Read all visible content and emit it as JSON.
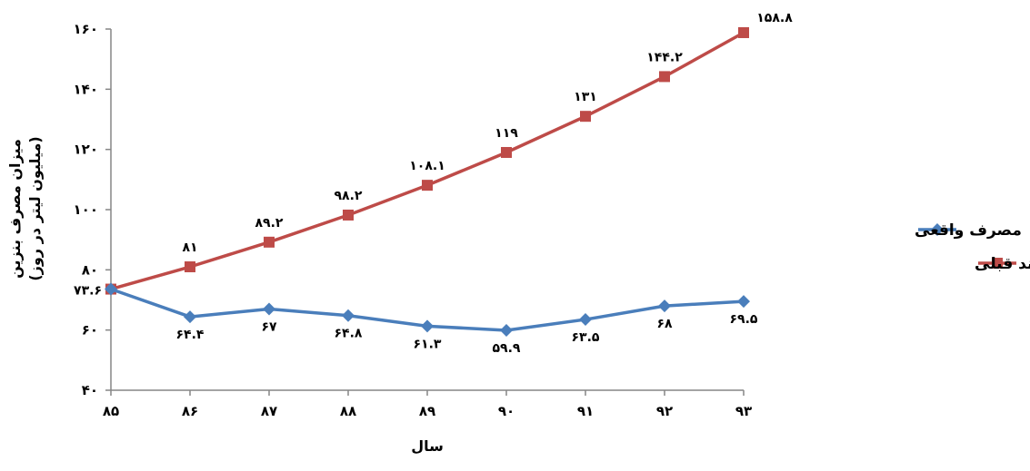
{
  "chart_data": {
    "type": "line",
    "categories": [
      "۸۵",
      "۸۶",
      "۸۷",
      "۸۸",
      "۸۹",
      "۹۰",
      "۹۱",
      "۹۲",
      "۹۳"
    ],
    "ylim": [
      40,
      160
    ],
    "yticks": [
      40,
      60,
      80,
      100,
      120,
      140,
      160
    ],
    "ytick_labels": [
      "۴۰",
      "۶۰",
      "۸۰",
      "۱۰۰",
      "۱۲۰",
      "۱۴۰",
      "۱۶۰"
    ],
    "xlabel": "سال",
    "ylabel_line1": "میزان مصرف بنزین",
    "ylabel_line2": "(میلیون لیتر در روز)",
    "grid": false,
    "legend_position": "right",
    "series": [
      {
        "name": "مصرف واقعی",
        "color": "#4a7ebb",
        "marker": "diamond",
        "values": [
          73.6,
          64.4,
          67,
          64.8,
          61.3,
          59.9,
          63.5,
          68,
          69.5
        ],
        "labels": [
          "۷۳.۶",
          "۶۴.۴",
          "۶۷",
          "۶۴.۸",
          "۶۱.۳",
          "۵۹.۹",
          "۶۳.۵",
          "۶۸",
          "۶۹.۵"
        ]
      },
      {
        "name": "مصرف با استمرار روند قبلی",
        "color": "#be4b48",
        "marker": "square",
        "values": [
          73.6,
          81,
          89.2,
          98.2,
          108.1,
          119,
          131,
          144.2,
          158.8
        ],
        "labels": [
          "",
          "۸۱",
          "۸۹.۲",
          "۹۸.۲",
          "۱۰۸.۱",
          "۱۱۹",
          "۱۳۱",
          "۱۴۴.۲",
          "۱۵۸.۸"
        ]
      }
    ]
  }
}
